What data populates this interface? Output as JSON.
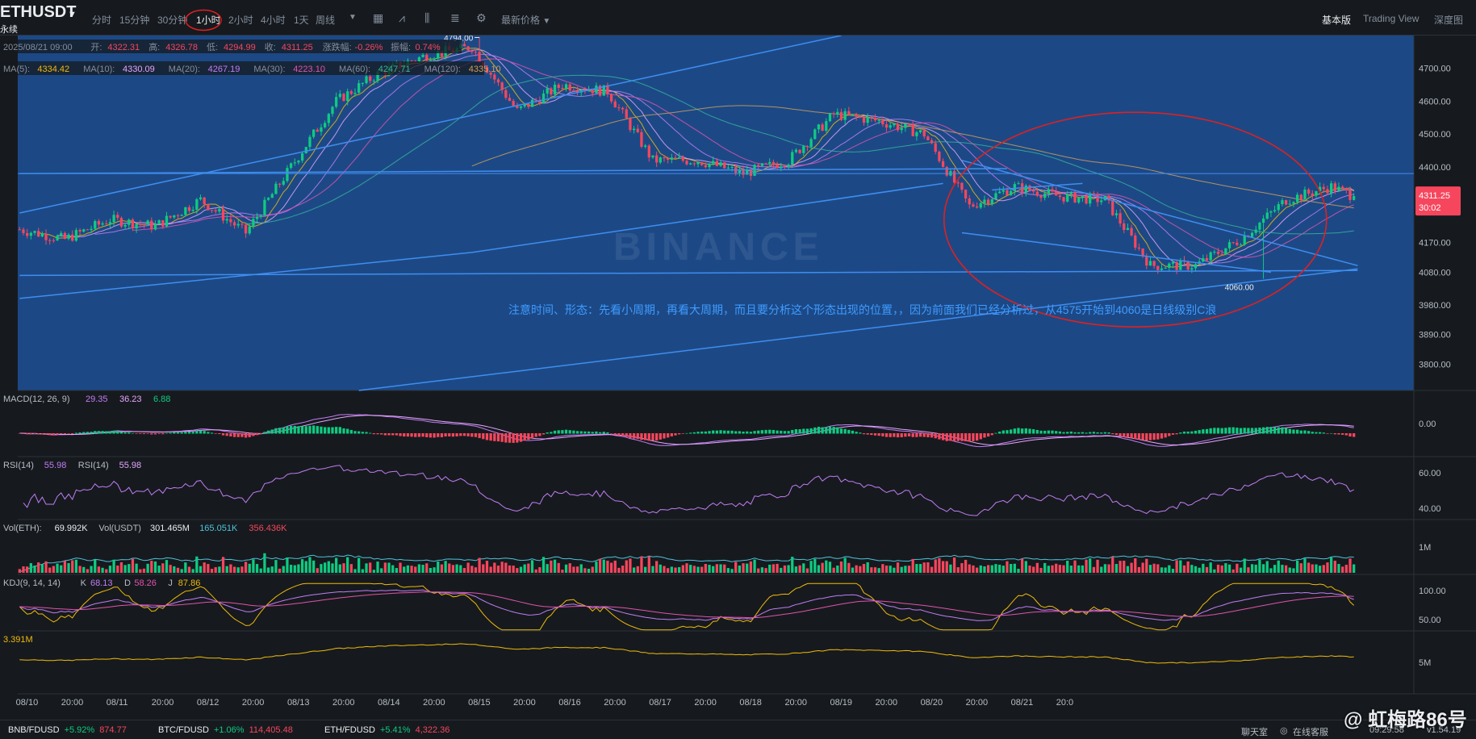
{
  "header": {
    "symbol": "ETHUSDT",
    "symbol_sub": "永续",
    "timeframes": [
      "分时",
      "15分钟",
      "30分钟",
      "1小时",
      "2小时",
      "4小时",
      "1天",
      "周线"
    ],
    "active_timeframe": "1小时",
    "price_type": "最新价格",
    "view_tabs": [
      "基本版",
      "Trading View",
      "深度图"
    ],
    "active_view": "基本版"
  },
  "ohlc": {
    "date": "2025/08/21 09:00",
    "open_label": "开:",
    "open": "4322.31",
    "high_label": "高:",
    "high": "4326.78",
    "low_label": "低:",
    "low": "4294.99",
    "close_label": "收:",
    "close": "4311.25",
    "change_label": "涨跌幅:",
    "change": "-0.26%",
    "amp_label": "振幅:",
    "amp": "0.74%"
  },
  "ma_legend": [
    {
      "label": "MA(5):",
      "value": "4334.42",
      "color": "#f0b90b"
    },
    {
      "label": "MA(10):",
      "value": "4330.09",
      "color": "#e6a5ff"
    },
    {
      "label": "MA(20):",
      "value": "4267.19",
      "color": "#c27cf6"
    },
    {
      "label": "MA(30):",
      "value": "4223.10",
      "color": "#e252ad"
    },
    {
      "label": "MA(60):",
      "value": "4247.71",
      "color": "#36b29b"
    },
    {
      "label": "MA(120):",
      "value": "4335.10",
      "color": "#d09e5a"
    }
  ],
  "annotation": "注意时间、形态：先看小周期，再看大周期，而且要分析这个形态出现的位置，，因为前面我们已经分析过，从4575开始到4060是日线级别C浪",
  "current_price": {
    "price": "4311.25",
    "countdown": "30:02"
  },
  "brand_watermark": "BINANCE",
  "chart_data": {
    "type": "candlestick",
    "interval": "1h",
    "price_axis_ticks": [
      4700.0,
      4600.0,
      4500.0,
      4400.0,
      4170.0,
      4080.0,
      3980.0,
      3890.0,
      3800.0
    ],
    "ylim": [
      3720,
      4800
    ],
    "x_tick_labels": [
      "08/10",
      "20:00",
      "08/11",
      "20:00",
      "08/12",
      "20:00",
      "08/13",
      "20:00",
      "08/14",
      "20:00",
      "08/15",
      "20:00",
      "08/16",
      "20:00",
      "08/17",
      "20:00",
      "08/18",
      "20:00",
      "08/19",
      "20:00",
      "08/20",
      "20:00",
      "08/21",
      "20:0"
    ],
    "price_path": [
      [
        0,
        4210
      ],
      [
        12,
        4180
      ],
      [
        24,
        4240
      ],
      [
        36,
        4220
      ],
      [
        48,
        4300
      ],
      [
        60,
        4200
      ],
      [
        72,
        4400
      ],
      [
        84,
        4600
      ],
      [
        96,
        4690
      ],
      [
        108,
        4740
      ],
      [
        120,
        4765
      ],
      [
        132,
        4570
      ],
      [
        144,
        4650
      ],
      [
        156,
        4630
      ],
      [
        168,
        4420
      ],
      [
        180,
        4420
      ],
      [
        192,
        4380
      ],
      [
        204,
        4420
      ],
      [
        216,
        4560
      ],
      [
        228,
        4540
      ],
      [
        240,
        4500
      ],
      [
        252,
        4280
      ],
      [
        264,
        4340
      ],
      [
        276,
        4310
      ],
      [
        288,
        4300
      ],
      [
        300,
        4100
      ],
      [
        312,
        4100
      ],
      [
        324,
        4180
      ],
      [
        336,
        4300
      ],
      [
        348,
        4340
      ],
      [
        354,
        4311.25
      ]
    ],
    "candle_count": 355,
    "high_marker": {
      "label": "4794.00",
      "value": 4794.0
    },
    "low_marker": {
      "label": "4060.00",
      "value": 4060.0
    },
    "last_price": 4311.25,
    "panels": [
      {
        "name": "MACD",
        "legend": [
          {
            "label": "MACD(12, 26, 9)",
            "value": "29.35",
            "color": "#c27cf6"
          },
          {
            "label": "",
            "value": "36.23",
            "color": "#e6a5ff"
          },
          {
            "label": "",
            "value": "6.88",
            "color": "#0ecb81"
          }
        ],
        "axis_ticks": [
          "0.00"
        ]
      },
      {
        "name": "RSI",
        "legend": [
          {
            "label": "RSI(14)",
            "value": "55.98",
            "color": "#c27cf6"
          },
          {
            "label": "RSI(14)",
            "value": "55.98",
            "color": "#e6a5ff"
          }
        ],
        "axis_ticks": [
          "60.00",
          "40.00"
        ]
      },
      {
        "name": "VOL",
        "legend": [
          {
            "label": "Vol(ETH):",
            "value": "69.992K",
            "color": "#eaecef"
          },
          {
            "label": "Vol(USDT)",
            "value": "301.465M",
            "color": "#eaecef"
          },
          {
            "label": "",
            "value": "165.051K",
            "color": "#4fc3dc"
          },
          {
            "label": "",
            "value": "356.436K",
            "color": "#f6465d"
          }
        ],
        "axis_ticks": [
          "1M"
        ]
      },
      {
        "name": "KDJ",
        "legend": [
          {
            "label": "KDJ(9, 14, 14)",
            "value": "",
            "color": "#b7bdc6"
          },
          {
            "label": "K",
            "value": "68.13",
            "color": "#c27cf6"
          },
          {
            "label": "D",
            "value": "58.26",
            "color": "#e252ad"
          },
          {
            "label": "J",
            "value": "87.86",
            "color": "#f0b90b"
          }
        ],
        "axis_ticks": [
          "100.00",
          "50.00"
        ]
      },
      {
        "name": "OBV",
        "legend": [
          {
            "label": "",
            "value": "3.391M",
            "color": "#f0b90b"
          }
        ],
        "axis_ticks": [
          "5M"
        ]
      }
    ]
  },
  "tickers": [
    {
      "symbol": "BNB/FDUSD",
      "change": "+5.92%",
      "price": "874.77"
    },
    {
      "symbol": "BTC/FDUSD",
      "change": "+1.06%",
      "price": "114,405.48"
    },
    {
      "symbol": "ETH/FDUSD",
      "change": "+5.41%",
      "price": "4,322.36"
    }
  ],
  "footer": {
    "chat": "聊天室",
    "support": "在线客服",
    "time": "09:29:58",
    "version": "v1.54.19"
  },
  "user_watermark": "@ 虹梅路86号",
  "colors": {
    "up": "#0ecb81",
    "down": "#f6465d",
    "highlight_bg": "#1d4f91",
    "trendline": "#3f8ef0",
    "circle": "#e02020",
    "annotation_text": "#3f9bff",
    "price_tag_bg": "#f6465d"
  }
}
